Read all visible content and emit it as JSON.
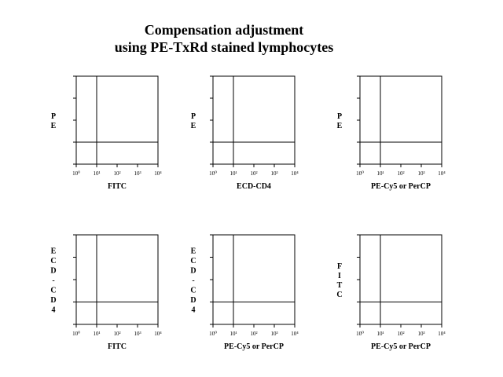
{
  "title_lines": [
    "Compensation adjustment",
    "using PE-TxRd stained lymphocytes"
  ],
  "chart_data": [
    {
      "type": "scatter",
      "scale": "log",
      "xlim": [
        1,
        10000
      ],
      "ylim": [
        1,
        10000
      ],
      "xlabel": "FITC",
      "ylabel": "PE",
      "quadrant_x": 10,
      "quadrant_y": 10,
      "xticks": [
        "10⁰",
        "10¹",
        "10²",
        "10³",
        "10⁴"
      ],
      "points": []
    },
    {
      "type": "scatter",
      "scale": "log",
      "xlim": [
        1,
        10000
      ],
      "ylim": [
        1,
        10000
      ],
      "xlabel": "ECD-CD4",
      "ylabel": "PE",
      "quadrant_x": 10,
      "quadrant_y": 10,
      "xticks": [
        "10⁰",
        "10¹",
        "10²",
        "10³",
        "10⁴"
      ],
      "points": []
    },
    {
      "type": "scatter",
      "scale": "log",
      "xlim": [
        1,
        10000
      ],
      "ylim": [
        1,
        10000
      ],
      "xlabel": "PE-Cy5 or PerCP",
      "ylabel": "PE",
      "quadrant_x": 10,
      "quadrant_y": 10,
      "xticks": [
        "10⁰",
        "10¹",
        "10²",
        "10³",
        "10⁴"
      ],
      "points": []
    },
    {
      "type": "scatter",
      "scale": "log",
      "xlim": [
        1,
        10000
      ],
      "ylim": [
        1,
        10000
      ],
      "xlabel": "FITC",
      "ylabel": "ECD-CD4",
      "quadrant_x": 10,
      "quadrant_y": 10,
      "xticks": [
        "10⁰",
        "10¹",
        "10²",
        "10³",
        "10⁴"
      ],
      "points": []
    },
    {
      "type": "scatter",
      "scale": "log",
      "xlim": [
        1,
        10000
      ],
      "ylim": [
        1,
        10000
      ],
      "xlabel": "PE-Cy5 or PerCP",
      "ylabel": "ECD-CD4",
      "quadrant_x": 10,
      "quadrant_y": 10,
      "xticks": [
        "10⁰",
        "10¹",
        "10²",
        "10³",
        "10⁴"
      ],
      "points": []
    },
    {
      "type": "scatter",
      "scale": "log",
      "xlim": [
        1,
        10000
      ],
      "ylim": [
        1,
        10000
      ],
      "xlabel": "PE-Cy5 or PerCP",
      "ylabel": "FITC",
      "quadrant_x": 10,
      "quadrant_y": 10,
      "xticks": [
        "10⁰",
        "10¹",
        "10²",
        "10³",
        "10⁴"
      ],
      "points": []
    }
  ]
}
